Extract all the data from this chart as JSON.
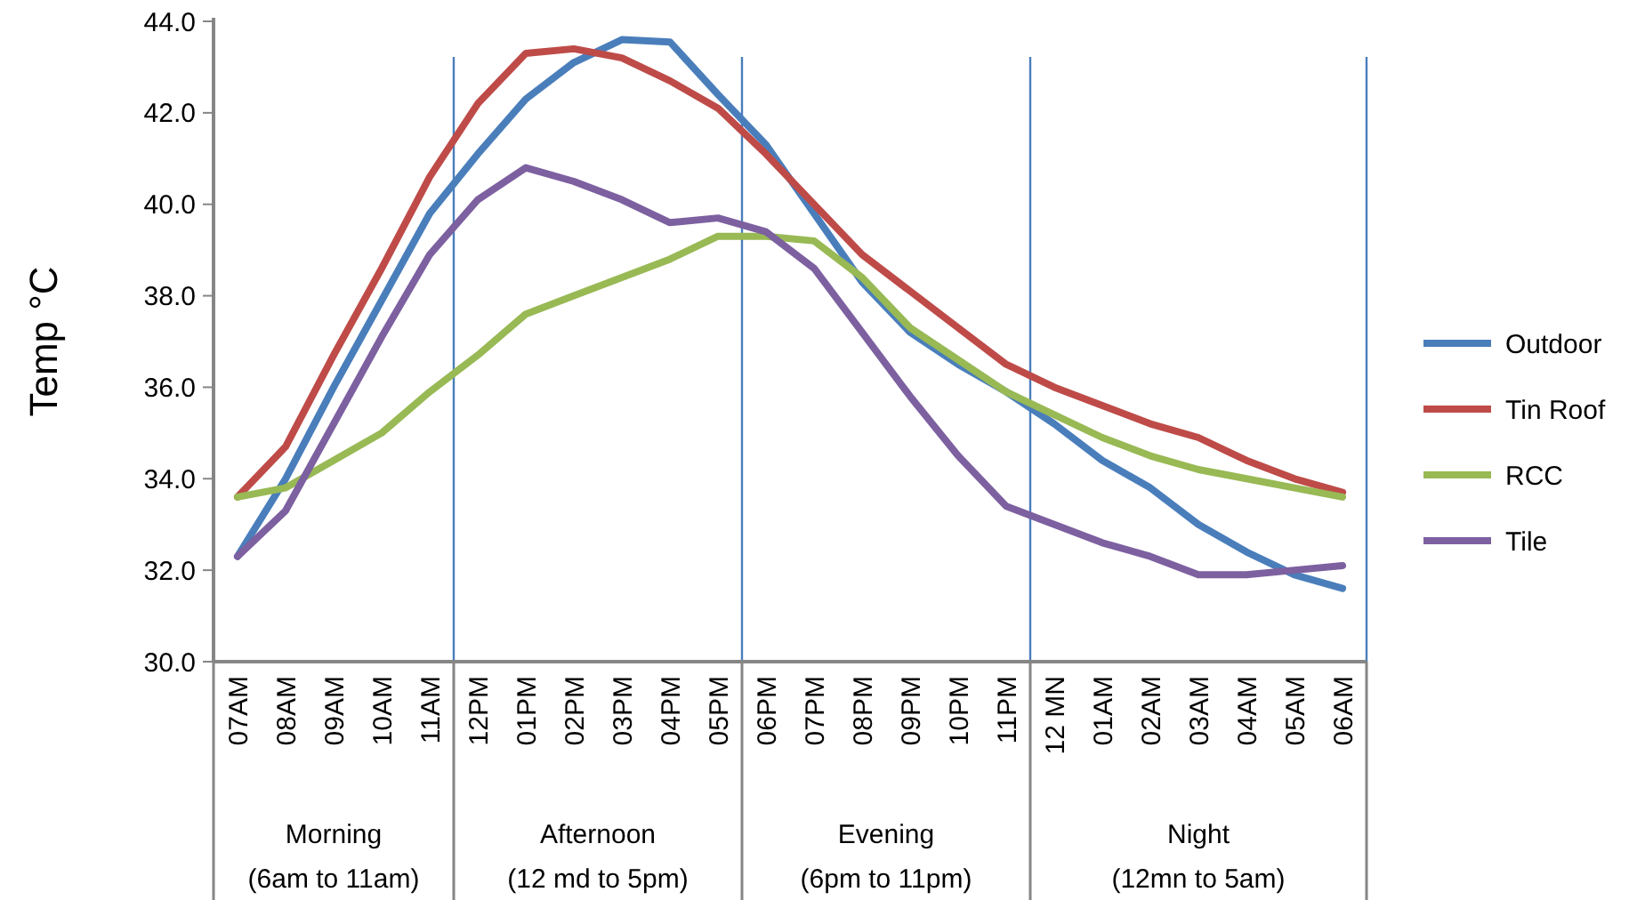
{
  "chart_data": {
    "type": "line",
    "ylabel": "Temp °C",
    "categories": [
      "07AM",
      "08AM",
      "09AM",
      "10AM",
      "11AM",
      "12PM",
      "01PM",
      "02PM",
      "03PM",
      "04PM",
      "05PM",
      "06PM",
      "07PM",
      "08PM",
      "09PM",
      "10PM",
      "11PM",
      "12 MN",
      "01AM",
      "02AM",
      "03AM",
      "04AM",
      "05AM",
      "06AM"
    ],
    "series": [
      {
        "name": "Outdoor",
        "color": "#4a7ebb",
        "values": [
          32.3,
          34.0,
          36.0,
          37.9,
          39.8,
          41.1,
          42.3,
          43.1,
          43.6,
          43.55,
          42.4,
          41.3,
          39.8,
          38.3,
          37.2,
          36.5,
          35.9,
          35.2,
          34.4,
          33.8,
          33.0,
          32.4,
          31.9,
          31.6
        ]
      },
      {
        "name": "Tin Roof",
        "color": "#be4b48",
        "values": [
          33.6,
          34.7,
          36.7,
          38.6,
          40.6,
          42.2,
          43.3,
          43.4,
          43.2,
          42.7,
          42.1,
          41.1,
          40.0,
          38.9,
          38.1,
          37.3,
          36.5,
          36.0,
          35.6,
          35.2,
          34.9,
          34.4,
          34.0,
          33.7
        ]
      },
      {
        "name": "RCC",
        "color": "#98b954",
        "values": [
          33.6,
          33.8,
          34.4,
          35.0,
          35.9,
          36.7,
          37.6,
          38.0,
          38.4,
          38.8,
          39.3,
          39.3,
          39.2,
          38.4,
          37.3,
          36.6,
          35.9,
          35.4,
          34.9,
          34.5,
          34.2,
          34.0,
          33.8,
          33.6
        ]
      },
      {
        "name": "Tile",
        "color": "#7d60a0",
        "values": [
          32.3,
          33.3,
          35.2,
          37.1,
          38.9,
          40.1,
          40.8,
          40.5,
          40.1,
          39.6,
          39.7,
          39.4,
          38.6,
          37.2,
          35.8,
          34.5,
          33.4,
          33.0,
          32.6,
          32.3,
          31.9,
          31.9,
          32.0,
          32.1
        ]
      }
    ],
    "ylim": [
      30,
      44
    ],
    "yticks": [
      {
        "value": 30,
        "label": "30.0"
      },
      {
        "value": 32,
        "label": "32.0"
      },
      {
        "value": 34,
        "label": "34.0"
      },
      {
        "value": 36,
        "label": "36.0"
      },
      {
        "value": 38,
        "label": "38.0"
      },
      {
        "value": 40,
        "label": "40.0"
      },
      {
        "value": 42,
        "label": "42.0"
      },
      {
        "value": 44,
        "label": "44.0"
      }
    ],
    "annotations": [
      "Morning\n(6am to 11am)",
      "Afternoon\n(12 md to 5pm)",
      "Evening\n(6pm to 11pm)",
      "Night\n(12mn to 5am)"
    ],
    "grid": false,
    "legend": "right",
    "marker": "none",
    "line_style": "solid"
  }
}
